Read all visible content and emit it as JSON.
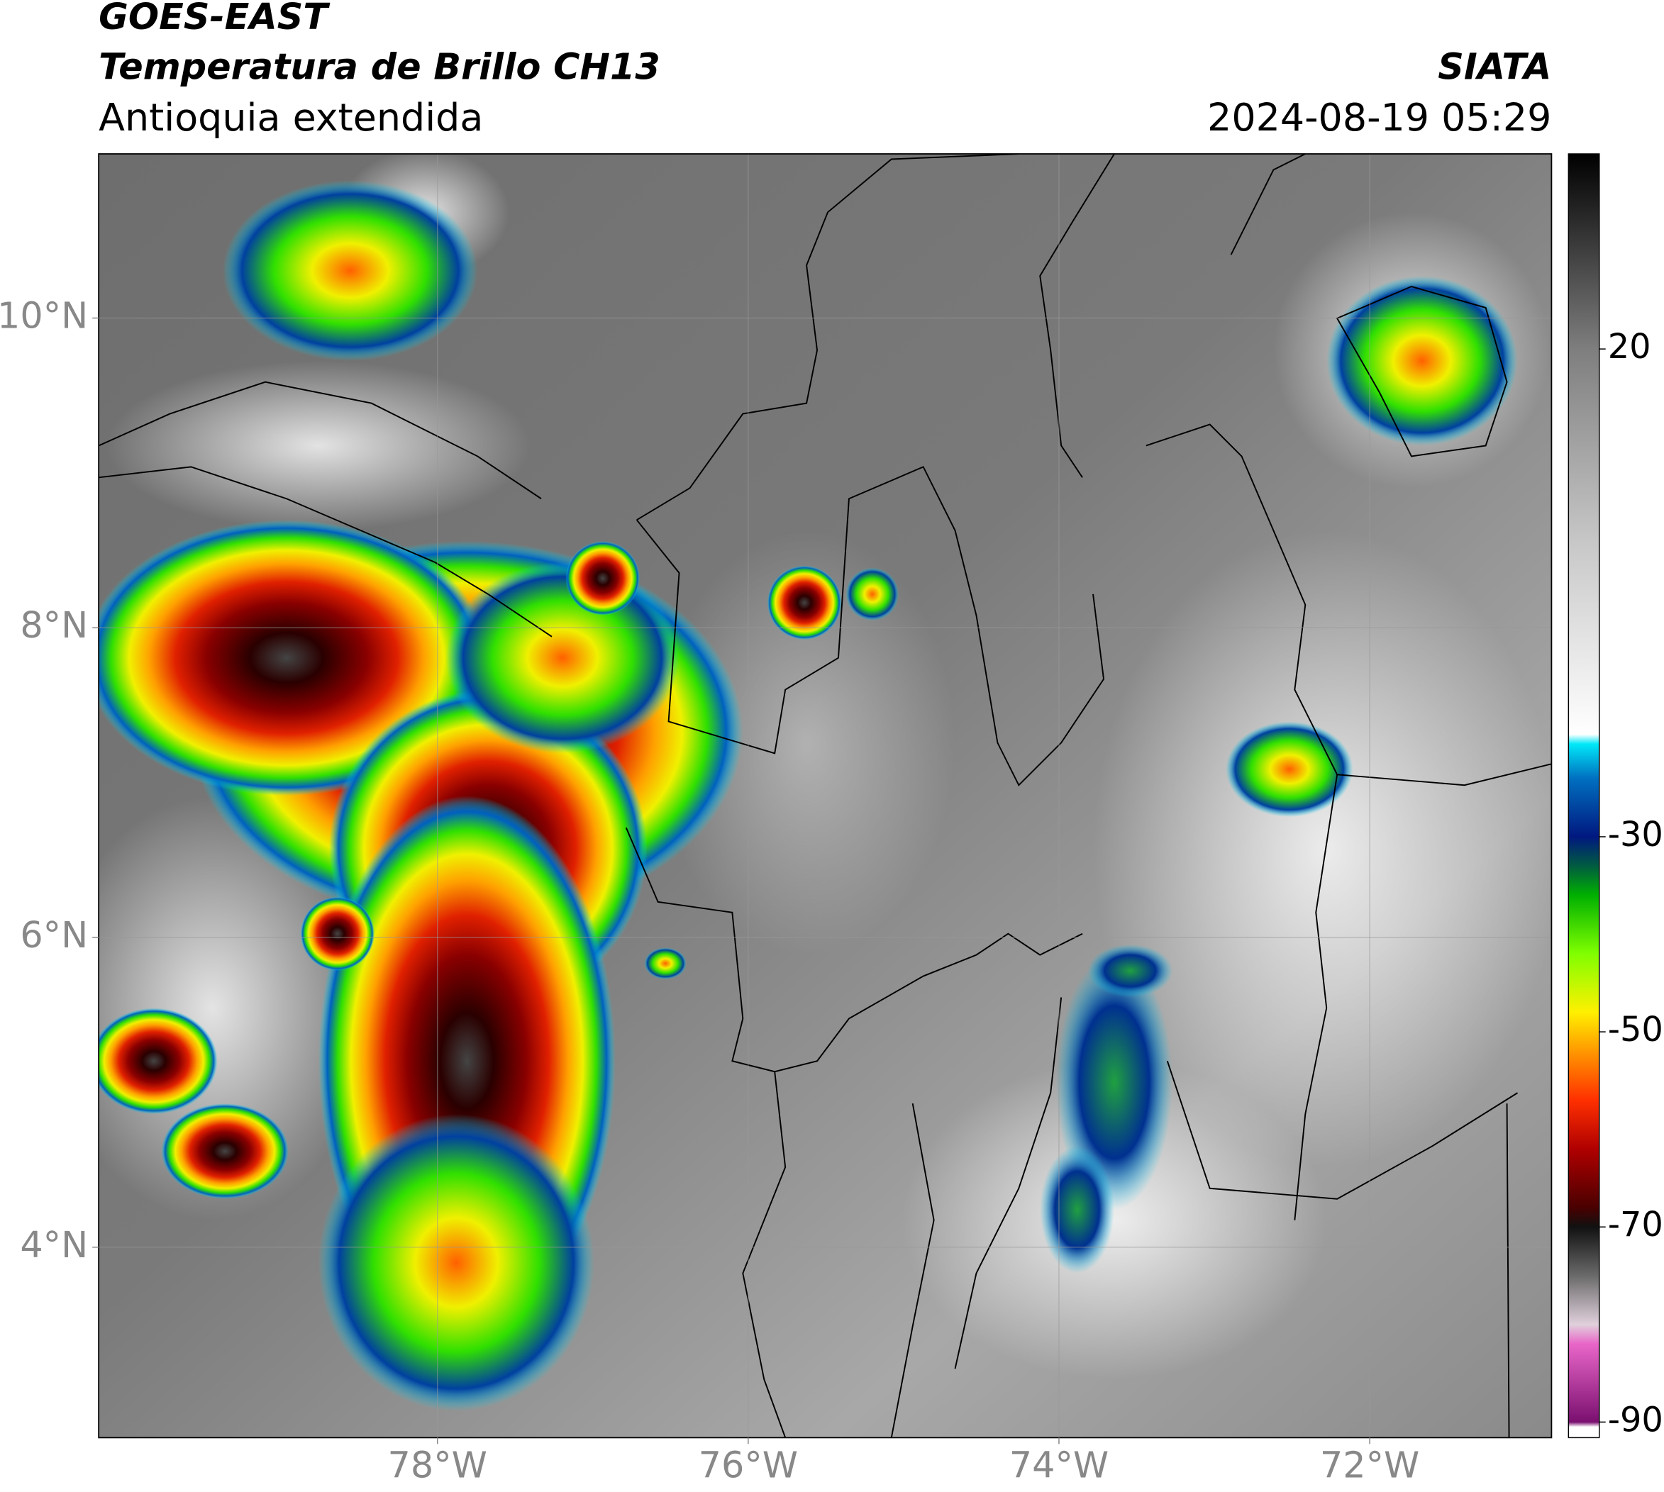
{
  "header": {
    "title_lines": [
      "GOES-EAST",
      "Temperatura de Brillo CH13"
    ],
    "subtitle": "Antioquia extendida",
    "agency": "SIATA",
    "datetime": "2024-08-19 05:29"
  },
  "map": {
    "xlim": [
      -80.18,
      -70.83
    ],
    "ylim": [
      2.77,
      11.06
    ],
    "xticks": [
      {
        "value": -78,
        "label": "78°W"
      },
      {
        "value": -76,
        "label": "76°W"
      },
      {
        "value": -74,
        "label": "74°W"
      },
      {
        "value": -72,
        "label": "72°W"
      }
    ],
    "yticks": [
      {
        "value": 4,
        "label": "4°N"
      },
      {
        "value": 6,
        "label": "6°N"
      },
      {
        "value": 8,
        "label": "8°N"
      },
      {
        "value": 10,
        "label": "10°N"
      }
    ],
    "grid": true
  },
  "colorbar": {
    "lim": [
      -91.6,
      40
    ],
    "ticks": [
      -90,
      -70,
      -50,
      -30,
      20
    ],
    "colormap": [
      {
        "value": -91.6,
        "color": "#ffffff"
      },
      {
        "value": -90.5,
        "color": "#ffffff"
      },
      {
        "value": -90,
        "color": "#7a1070"
      },
      {
        "value": -82,
        "color": "#e866c8"
      },
      {
        "value": -80,
        "color": "#e0d0dc"
      },
      {
        "value": -75,
        "color": "#6a6a6a"
      },
      {
        "value": -70,
        "color": "#111111"
      },
      {
        "value": -68,
        "color": "#4a0000"
      },
      {
        "value": -62,
        "color": "#b00000"
      },
      {
        "value": -57,
        "color": "#ff3000"
      },
      {
        "value": -52,
        "color": "#ff9800"
      },
      {
        "value": -48,
        "color": "#fff000"
      },
      {
        "value": -42,
        "color": "#80ff00"
      },
      {
        "value": -36,
        "color": "#00b000"
      },
      {
        "value": -33,
        "color": "#005c40"
      },
      {
        "value": -30,
        "color": "#001880"
      },
      {
        "value": -24,
        "color": "#0070c0"
      },
      {
        "value": -20.5,
        "color": "#00e8f8"
      },
      {
        "value": -19.5,
        "color": "#ffffff"
      },
      {
        "value": 0,
        "color": "#c8c8c8"
      },
      {
        "value": 20,
        "color": "#7e7e7e"
      },
      {
        "value": 40,
        "color": "#000000"
      }
    ]
  }
}
